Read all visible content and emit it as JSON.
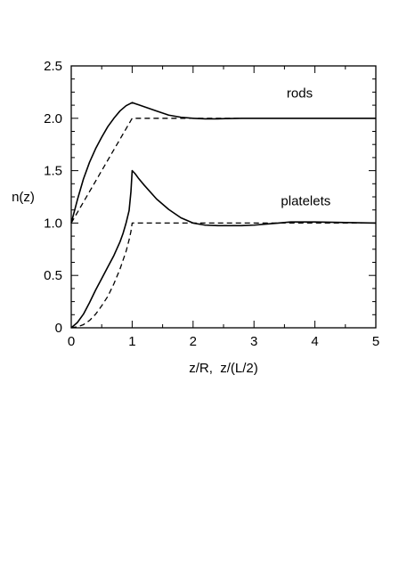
{
  "chart_data": {
    "type": "line",
    "xlabel": "z/R,  z/(L/2)",
    "ylabel": "n(z)",
    "xlim": [
      0,
      5
    ],
    "ylim": [
      0,
      2.5
    ],
    "x_ticks": [
      0,
      1,
      2,
      3,
      4,
      5
    ],
    "y_ticks": [
      0,
      0.5,
      1.0,
      1.5,
      2.0,
      2.5
    ],
    "x_tick_labels": [
      "0",
      "1",
      "2",
      "3",
      "4",
      "5"
    ],
    "y_tick_labels": [
      "0",
      "0.5",
      "1.0",
      "1.5",
      "2.0",
      "2.5"
    ],
    "grid": false,
    "annotations": [
      {
        "text": "rods",
        "x": 3.75,
        "y": 2.2
      },
      {
        "text": "platelets",
        "x": 3.85,
        "y": 1.17
      }
    ],
    "series": [
      {
        "group": "rods",
        "style": "solid",
        "x": [
          0,
          0.1,
          0.2,
          0.3,
          0.4,
          0.5,
          0.6,
          0.7,
          0.8,
          0.9,
          1.0,
          1.05,
          1.1,
          1.2,
          1.4,
          1.6,
          1.8,
          2.0,
          2.2,
          2.4,
          2.6,
          2.8,
          3.0,
          3.5,
          4.0,
          4.5,
          5.0
        ],
        "y": [
          1.0,
          1.22,
          1.42,
          1.58,
          1.71,
          1.82,
          1.92,
          2.0,
          2.07,
          2.12,
          2.15,
          2.14,
          2.13,
          2.11,
          2.07,
          2.03,
          2.01,
          2.0,
          1.995,
          1.995,
          1.998,
          2.0,
          2.0,
          2.0,
          2.0,
          2.0,
          2.0
        ]
      },
      {
        "group": "rods",
        "style": "dashed",
        "x": [
          0,
          1.0,
          5.0
        ],
        "y": [
          1.0,
          2.0,
          2.0
        ]
      },
      {
        "group": "platelets",
        "style": "solid",
        "x": [
          0,
          0.1,
          0.2,
          0.3,
          0.4,
          0.5,
          0.6,
          0.7,
          0.8,
          0.85,
          0.9,
          0.95,
          0.98,
          1.0,
          1.05,
          1.1,
          1.2,
          1.4,
          1.6,
          1.8,
          2.0,
          2.2,
          2.4,
          2.6,
          2.8,
          3.0,
          3.2,
          3.4,
          3.6,
          3.8,
          4.0,
          4.5,
          5.0
        ],
        "y": [
          0.0,
          0.05,
          0.13,
          0.24,
          0.36,
          0.47,
          0.58,
          0.69,
          0.82,
          0.9,
          1.0,
          1.12,
          1.3,
          1.5,
          1.47,
          1.43,
          1.36,
          1.23,
          1.13,
          1.05,
          1.0,
          0.98,
          0.975,
          0.975,
          0.975,
          0.98,
          0.99,
          1.0,
          1.01,
          1.01,
          1.01,
          1.005,
          1.0
        ]
      },
      {
        "group": "platelets",
        "style": "dashed",
        "x": [
          0,
          0.1,
          0.2,
          0.3,
          0.4,
          0.5,
          0.6,
          0.7,
          0.8,
          0.9,
          0.95,
          0.98,
          1.0,
          5.0
        ],
        "y": [
          0.0,
          0.01,
          0.03,
          0.07,
          0.13,
          0.21,
          0.3,
          0.42,
          0.56,
          0.73,
          0.84,
          0.92,
          1.0,
          1.0
        ]
      }
    ]
  }
}
